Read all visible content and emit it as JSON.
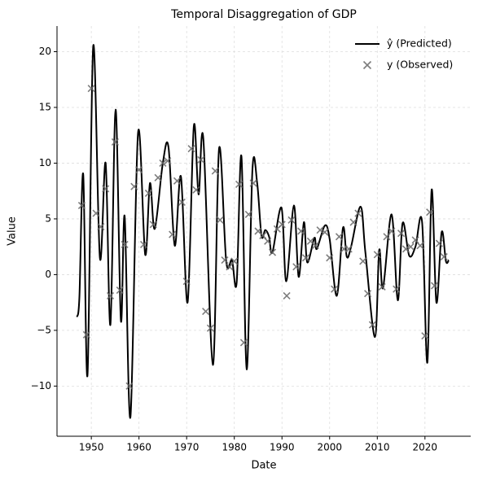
{
  "chart_data": {
    "type": "line",
    "title": "Temporal Disaggregation of GDP",
    "xlabel": "Date",
    "ylabel": "Value",
    "xlim": [
      1942.8,
      2029.6
    ],
    "ylim": [
      -14.5,
      22.3
    ],
    "xticks": [
      1950,
      1960,
      1970,
      1980,
      1990,
      2000,
      2010,
      2020
    ],
    "yticks": [
      {
        "value": -10,
        "label": "−10"
      },
      {
        "value": -5,
        "label": "−5"
      },
      0,
      5,
      10,
      15,
      20
    ],
    "grid": true,
    "legend": "upper right",
    "series": [
      {
        "name": "ŷ (Predicted)",
        "type": "line",
        "color": "#000000",
        "x": [
          1947,
          1947.5,
          1948.3,
          1949.2,
          1950.4,
          1951.8,
          1953,
          1954,
          1955.1,
          1956.2,
          1957,
          1958.2,
          1959.8,
          1961.3,
          1962.3,
          1963.3,
          1965,
          1966.2,
          1967.5,
          1968.8,
          1970.2,
          1971.5,
          1972.5,
          1973.5,
          1975.5,
          1976.8,
          1978.3,
          1979.5,
          1980.5,
          1981.5,
          1982.6,
          1983.8,
          1984.8,
          1985.7,
          1986.5,
          1987.3,
          1988,
          1989.9,
          1990.9,
          1992.5,
          1993.5,
          1994.6,
          1995.3,
          1996.8,
          1997.3,
          1999,
          2000,
          2001.5,
          2002.8,
          2003.6,
          2004.5,
          2006.5,
          2007.5,
          2009.5,
          2010.4,
          2011.2,
          2013,
          2014.3,
          2015.3,
          2016.7,
          2018,
          2019.4,
          2020.5,
          2021.4,
          2022.4,
          2023.5,
          2024.4,
          2025
        ],
        "values": [
          -3.8,
          -2,
          9.0,
          -9.0,
          20.5,
          1.5,
          10.0,
          -4.5,
          14.8,
          -4.1,
          5.2,
          -12.8,
          12.7,
          1.8,
          8.2,
          4.1,
          10.0,
          11.4,
          2.6,
          8.8,
          -2.5,
          13.3,
          7.2,
          12.2,
          -8.1,
          11.3,
          1.2,
          1.3,
          -0.7,
          10.6,
          -8.5,
          9.4,
          8.2,
          3.5,
          4.0,
          3.4,
          2.0,
          6.0,
          -0.6,
          6.2,
          -0.2,
          4.7,
          1.1,
          3.3,
          2.3,
          4.4,
          3.2,
          -1.9,
          4.2,
          1.6,
          2.5,
          6.1,
          2.0,
          -5.6,
          2.2,
          -1.2,
          5.4,
          -2.3,
          4.6,
          1.7,
          2.5,
          4.7,
          -7.9,
          7.6,
          -2.5,
          3.8,
          1.2,
          1.3
        ]
      },
      {
        "name": "y (Observed)",
        "type": "scatter",
        "color": "#666666",
        "x": [
          1948,
          1949,
          1950,
          1951,
          1952,
          1953,
          1954,
          1955,
          1956,
          1957,
          1958,
          1959,
          1960,
          1961,
          1962,
          1963,
          1964,
          1965,
          1966,
          1967,
          1968,
          1969,
          1970,
          1971,
          1972,
          1973,
          1974,
          1975,
          1976,
          1977,
          1978,
          1979,
          1980,
          1981,
          1982,
          1983,
          1984,
          1985,
          1986,
          1987,
          1988,
          1989,
          1990,
          1991,
          1992,
          1993,
          1994,
          1995,
          1996,
          1997,
          1998,
          1999,
          2000,
          2001,
          2002,
          2003,
          2004,
          2005,
          2006,
          2007,
          2008,
          2009,
          2010,
          2011,
          2012,
          2013,
          2014,
          2015,
          2016,
          2017,
          2018,
          2019,
          2020,
          2021,
          2022,
          2023,
          2024
        ],
        "values": [
          6.2,
          -5.4,
          16.7,
          5.5,
          4.3,
          7.7,
          -1.9,
          11.9,
          -1.4,
          2.7,
          -10,
          7.9,
          9.4,
          2.7,
          7.3,
          4.5,
          8.7,
          10.0,
          10.2,
          3.6,
          8.4,
          6.5,
          -0.6,
          11.3,
          7.6,
          10.3,
          -3.3,
          -4.8,
          9.3,
          4.9,
          1.3,
          0.7,
          1.2,
          8.1,
          -6.1,
          5.4,
          8.2,
          3.9,
          3.5,
          3.0,
          2.0,
          4.1,
          4.5,
          -1.9,
          4.9,
          0.7,
          3.9,
          1.5,
          3.0,
          2.6,
          4.0,
          3.8,
          1.5,
          -1.3,
          3.4,
          2.3,
          2.3,
          4.7,
          5.5,
          1.2,
          -1.7,
          -4.5,
          1.8,
          -1.1,
          3.4,
          3.9,
          -1.3,
          3.7,
          2.3,
          2.5,
          3.1,
          2.6,
          -5.5,
          5.6,
          -1.0,
          2.8,
          1.6
        ]
      }
    ]
  }
}
